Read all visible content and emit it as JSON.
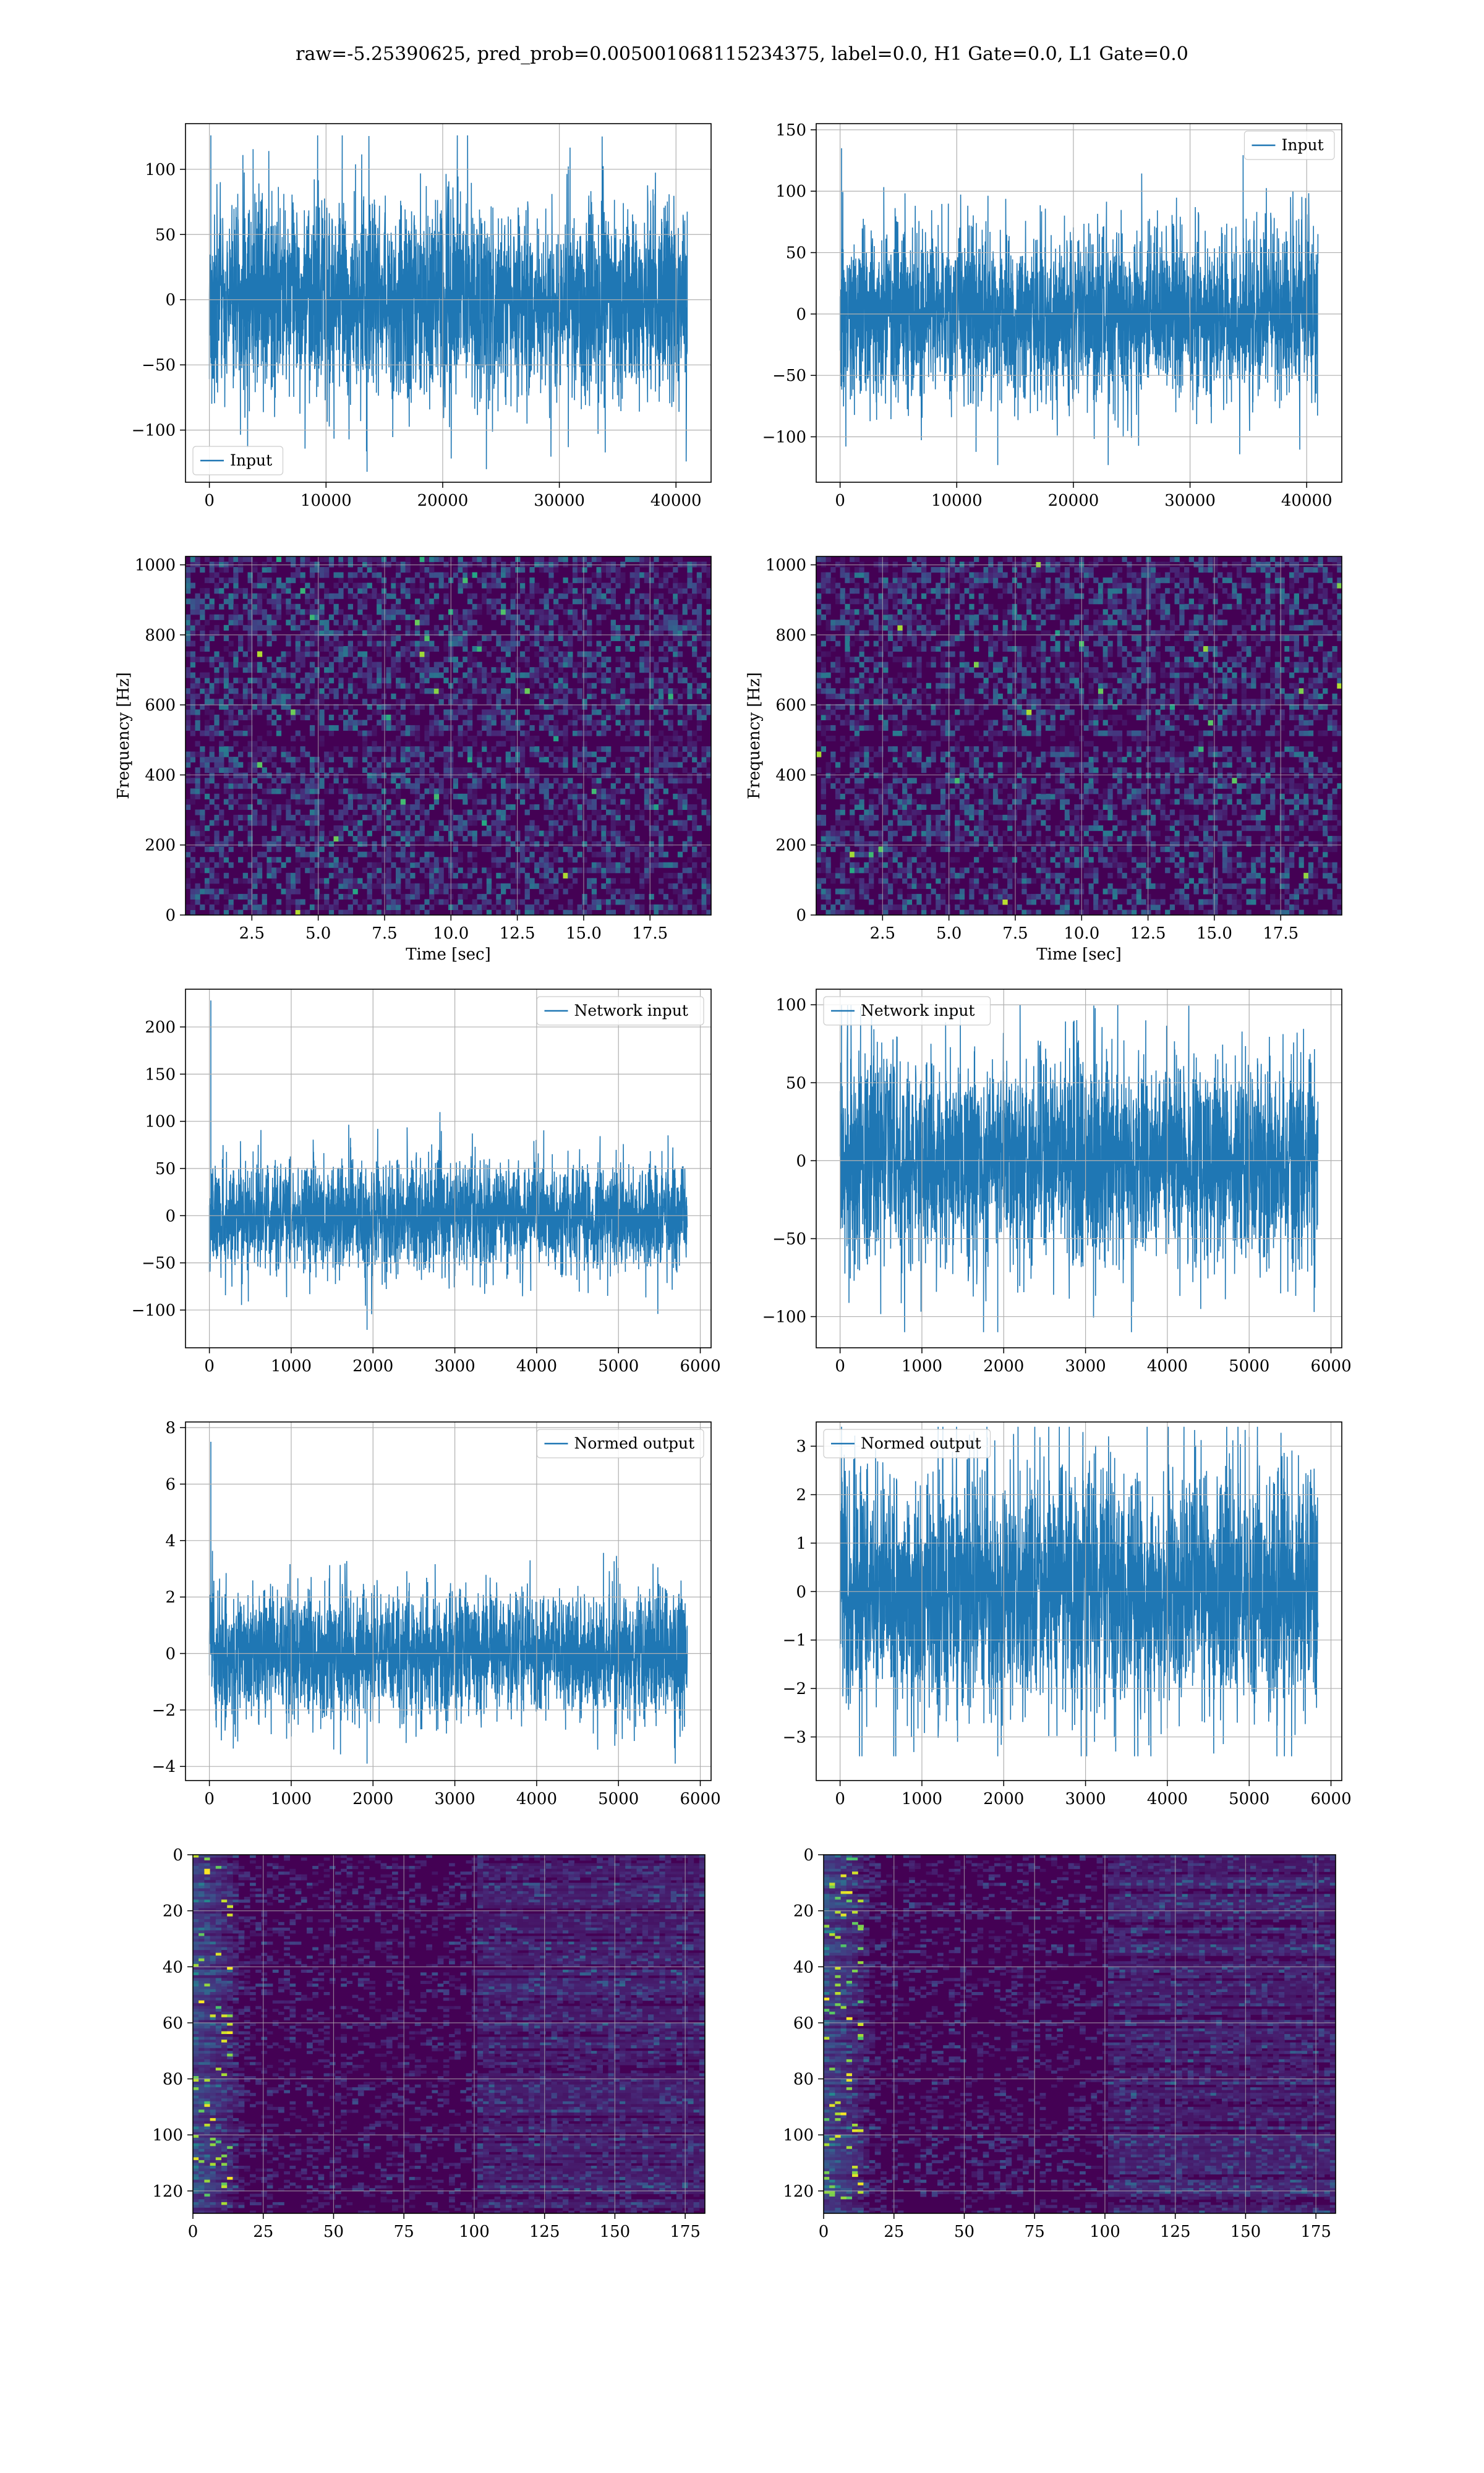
{
  "title": "raw=-5.25390625, pred_prob=0.005001068115234375, label=0.0, H1 Gate=0.0, L1 Gate=0.0",
  "colors": {
    "series": "#1f77b4",
    "grid": "#b0b0b0",
    "spines": "#000000",
    "viridis_low": "#440154",
    "viridis_high": "#fde725"
  },
  "chart_data": [
    {
      "type": "line",
      "id": "ts-input-h1",
      "series": [
        {
          "name": "Input",
          "x_range": [
            0,
            40960
          ],
          "amplitude_std": 28,
          "peak_values": [
            126,
            -132
          ]
        }
      ],
      "xlim": [
        -2048,
        43008
      ],
      "ylim": [
        -140,
        135
      ],
      "xticks": [
        0,
        10000,
        20000,
        30000,
        40000
      ],
      "yticks": [
        -100,
        -50,
        0,
        50,
        100
      ],
      "xlabel": "",
      "ylabel": "",
      "legend": "lower-left",
      "grid": true
    },
    {
      "type": "line",
      "id": "ts-input-l1",
      "series": [
        {
          "name": "Input",
          "x_range": [
            0,
            40960
          ],
          "amplitude_std": 26,
          "peak_values": [
            135,
            -123
          ]
        }
      ],
      "xlim": [
        -2048,
        43008
      ],
      "ylim": [
        -137,
        155
      ],
      "xticks": [
        0,
        10000,
        20000,
        30000,
        40000
      ],
      "yticks": [
        -100,
        -50,
        0,
        50,
        100,
        150
      ],
      "xlabel": "",
      "ylabel": "",
      "legend": "upper-right",
      "grid": true
    },
    {
      "type": "heatmap",
      "id": "spectrogram-h1",
      "xlim": [
        0,
        19.8
      ],
      "ylim": [
        0,
        1024
      ],
      "xticks": [
        2.5,
        5.0,
        7.5,
        10.0,
        12.5,
        15.0,
        17.5
      ],
      "yticks": [
        0,
        200,
        400,
        600,
        800,
        1000
      ],
      "xlabel": "Time [sec]",
      "ylabel": "Frequency [Hz]",
      "colormap": "viridis",
      "dark_band_hz": 500,
      "grid": true
    },
    {
      "type": "heatmap",
      "id": "spectrogram-l1",
      "xlim": [
        0,
        19.8
      ],
      "ylim": [
        0,
        1024
      ],
      "xticks": [
        2.5,
        5.0,
        7.5,
        10.0,
        12.5,
        15.0,
        17.5
      ],
      "yticks": [
        0,
        200,
        400,
        600,
        800,
        1000
      ],
      "xlabel": "Time [sec]",
      "ylabel": "Frequency [Hz]",
      "colormap": "viridis",
      "dark_band_hz": 500,
      "grid": true
    },
    {
      "type": "line",
      "id": "network-input-h1",
      "series": [
        {
          "name": "Network input",
          "x_range": [
            0,
            5840
          ],
          "amplitude_std": 22,
          "peak_values": [
            228,
            -121
          ]
        }
      ],
      "xlim": [
        -292,
        6132
      ],
      "ylim": [
        -140,
        240
      ],
      "xticks": [
        0,
        1000,
        2000,
        3000,
        4000,
        5000,
        6000
      ],
      "yticks": [
        -100,
        -50,
        0,
        50,
        100,
        150,
        200
      ],
      "xlabel": "",
      "ylabel": "",
      "legend": "upper-right",
      "grid": true
    },
    {
      "type": "line",
      "id": "network-input-l1",
      "series": [
        {
          "name": "Network input",
          "x_range": [
            0,
            5840
          ],
          "amplitude_std": 25,
          "peak_values": [
            100,
            -110
          ]
        }
      ],
      "xlim": [
        -292,
        6132
      ],
      "ylim": [
        -120,
        110
      ],
      "xticks": [
        0,
        1000,
        2000,
        3000,
        4000,
        5000,
        6000
      ],
      "yticks": [
        -100,
        -50,
        0,
        50,
        100
      ],
      "xlabel": "",
      "ylabel": "",
      "legend": "upper-left",
      "grid": true
    },
    {
      "type": "line",
      "id": "normed-output-h1",
      "series": [
        {
          "name": "Normed output",
          "x_range": [
            0,
            5840
          ],
          "amplitude_std": 0.85,
          "peak_values": [
            7.5,
            -3.9
          ]
        }
      ],
      "xlim": [
        -292,
        6132
      ],
      "ylim": [
        -4.5,
        8.2
      ],
      "xticks": [
        0,
        1000,
        2000,
        3000,
        4000,
        5000,
        6000
      ],
      "yticks": [
        -4,
        -2,
        0,
        2,
        4,
        6,
        8
      ],
      "xlabel": "",
      "ylabel": "",
      "legend": "upper-right",
      "grid": true
    },
    {
      "type": "line",
      "id": "normed-output-l1",
      "series": [
        {
          "name": "Normed output",
          "x_range": [
            0,
            5840
          ],
          "amplitude_std": 0.95,
          "peak_values": [
            3.4,
            -3.4
          ]
        }
      ],
      "xlim": [
        -292,
        6132
      ],
      "ylim": [
        -3.9,
        3.5
      ],
      "xticks": [
        0,
        1000,
        2000,
        3000,
        4000,
        5000,
        6000
      ],
      "yticks": [
        -3,
        -2,
        -1,
        0,
        1,
        2,
        3
      ],
      "xlabel": "",
      "ylabel": "",
      "legend": "upper-left",
      "grid": true
    },
    {
      "type": "heatmap",
      "id": "feature-map-h1",
      "xlim": [
        0,
        182
      ],
      "ylim": [
        128,
        0
      ],
      "xticks": [
        0,
        25,
        50,
        75,
        100,
        125,
        150,
        175
      ],
      "yticks": [
        0,
        20,
        40,
        60,
        80,
        100,
        120
      ],
      "xlabel": "",
      "ylabel": "",
      "colormap": "viridis",
      "grid": true
    },
    {
      "type": "heatmap",
      "id": "feature-map-l1",
      "xlim": [
        0,
        182
      ],
      "ylim": [
        128,
        0
      ],
      "xticks": [
        0,
        25,
        50,
        75,
        100,
        125,
        150,
        175
      ],
      "yticks": [
        0,
        20,
        40,
        60,
        80,
        100,
        120
      ],
      "xlabel": "",
      "ylabel": "",
      "colormap": "viridis",
      "grid": true
    }
  ]
}
